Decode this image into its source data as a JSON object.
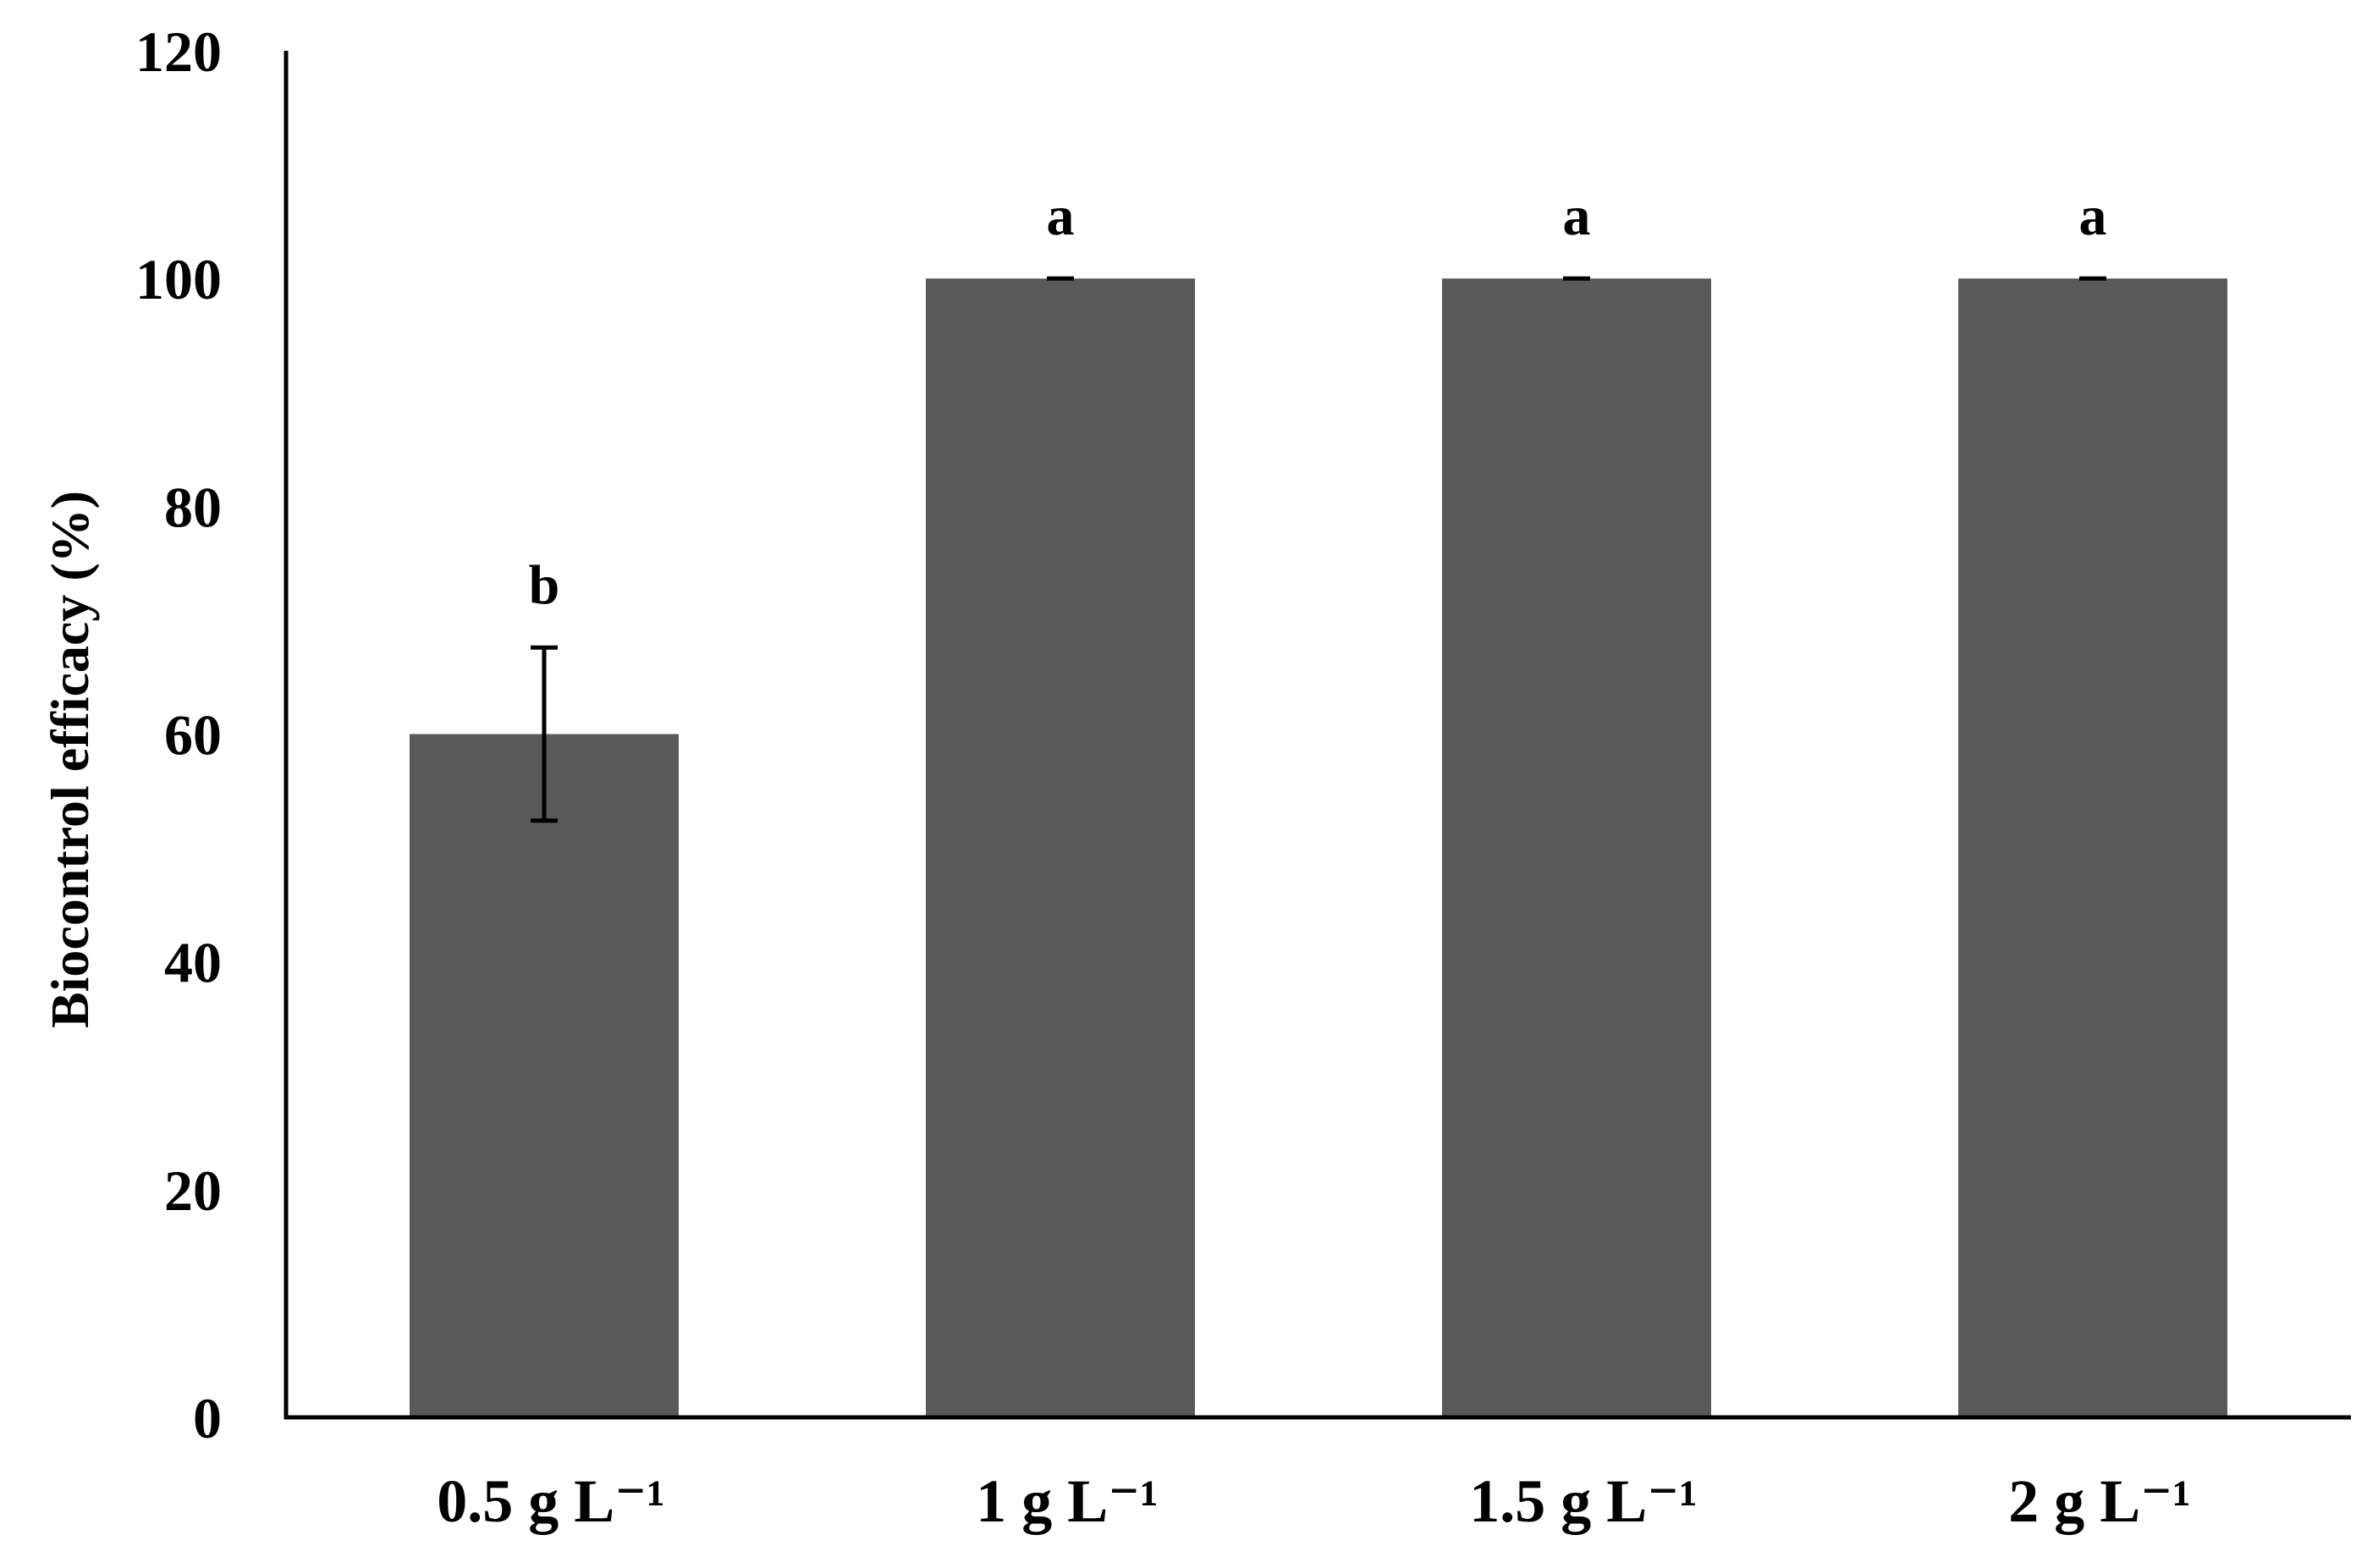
{
  "chart_data": {
    "type": "bar",
    "title": "",
    "xlabel": "",
    "ylabel": "Biocontrol efficacy (%)",
    "ylim": [
      0,
      120
    ],
    "yticks": [
      0,
      20,
      40,
      60,
      80,
      100,
      120
    ],
    "ytick_labels": [
      "0",
      "20",
      "40",
      "60",
      "80",
      "100",
      "120"
    ],
    "grid": false,
    "legend": "none",
    "categories": [
      "0.5 g L⁻¹",
      "1 g L⁻¹",
      "1.5 g L⁻¹",
      "2 g L⁻¹"
    ],
    "series": [
      {
        "values": [
          60,
          100,
          100,
          100
        ],
        "error": [
          7.6,
          0,
          0,
          0
        ],
        "significance_letters": [
          "b",
          "a",
          "a",
          "a"
        ]
      }
    ],
    "colors": {
      "bar": "#595959",
      "axis": "#000000",
      "text": "#000000"
    }
  }
}
